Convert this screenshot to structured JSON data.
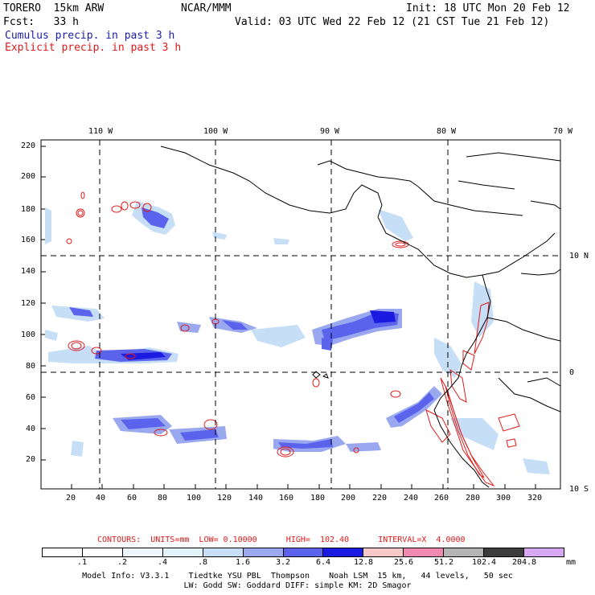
{
  "header": {
    "model": "TORERO  15km ARW",
    "org": "NCAR/MMM",
    "init": "Init: 18 UTC Mon 20 Feb 12",
    "fcst": "Fcst:   33 h",
    "valid": "Valid: 03 UTC Wed 22 Feb 12 (21 CST Tue 21 Feb 12)",
    "line1": "Cumulus precip. in past 3 h",
    "line2": "Explicit precip. in past 3 h",
    "line1_color": "#1c1ca8",
    "line2_color": "#e01a1a"
  },
  "map": {
    "lon_labels": [
      "110 W",
      "100 W",
      "90 W",
      "80 W",
      "70 W"
    ],
    "lat_labels": [
      "10 N",
      "0",
      "10 S"
    ],
    "y_axis_ticks": [
      "220",
      "200",
      "180",
      "160",
      "140",
      "120",
      "100",
      "80",
      "60",
      "40",
      "20"
    ],
    "x_axis_ticks": [
      "20",
      "40",
      "60",
      "80",
      "100",
      "120",
      "140",
      "160",
      "180",
      "200",
      "220",
      "240",
      "260",
      "280",
      "300",
      "320"
    ]
  },
  "legend": {
    "contours_text": "CONTOURS:  UNITS=mm  LOW= 0.10000      HIGH=  102.40      INTERVAL=X  4.0000",
    "thresholds": [
      ".1",
      ".2",
      ".4",
      ".8",
      "1.6",
      "3.2",
      "6.4",
      "12.8",
      "25.6",
      "51.2",
      "102.4",
      "204.8"
    ],
    "units": "mm",
    "colors": [
      "#ffffff",
      "#ffffff",
      "#eef6ff",
      "#e2f4fa",
      "#c6dff7",
      "#9aa8f0",
      "#5b63ec",
      "#1a1ae0",
      "#f8c8c8",
      "#f08ab0",
      "#b4b4b4",
      "#3c3c3c",
      "#d8a8f4"
    ]
  },
  "footer": {
    "line1": "Model Info: V3.3.1    Tiedtke YSU PBL  Thompson    Noah LSM  15 km,   44 levels,   50 sec",
    "line2": "LW: Godd SW: Goddard DIFF: simple KM: 2D Smagor"
  }
}
